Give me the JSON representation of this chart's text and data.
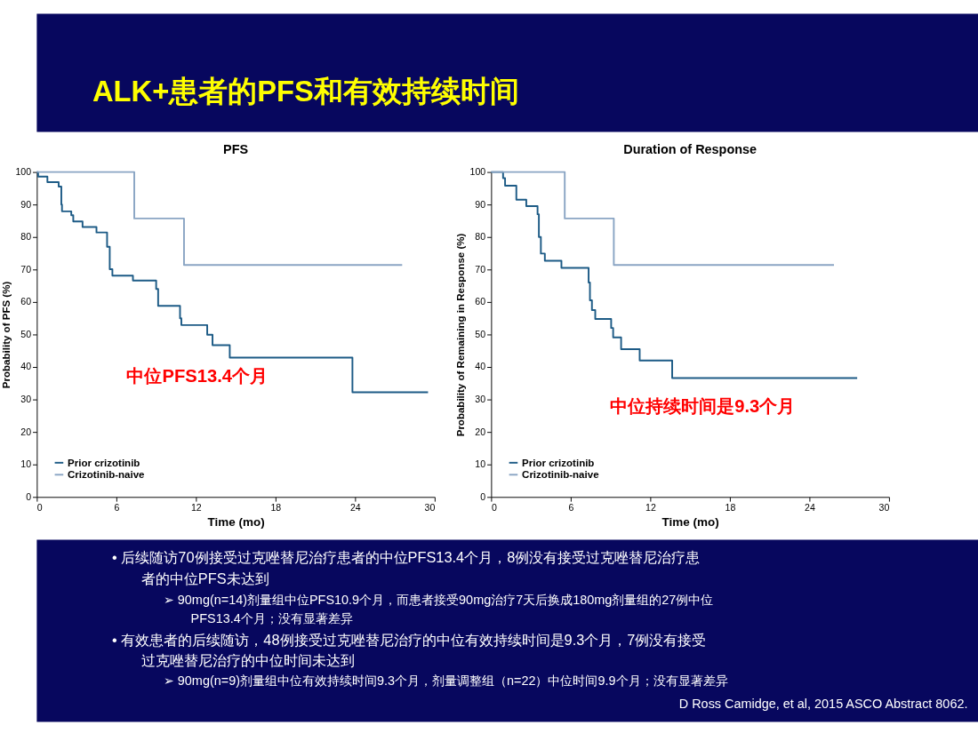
{
  "chart_data": [
    {
      "type": "other",
      "title": "ALK+患者的PFS和有效持续时间"
    },
    {
      "type": "step",
      "title": "PFS",
      "xlabel": "Time (mo)",
      "ylabel": "Probability of PFS (%)",
      "xlim": [
        0,
        30
      ],
      "xticks": [
        0,
        6,
        12,
        18,
        24,
        30
      ],
      "ylim": [
        0,
        100
      ],
      "yticks": [
        0,
        10,
        20,
        30,
        40,
        50,
        60,
        70,
        80,
        90,
        100
      ],
      "legend": "bottom left",
      "annotations": [
        "中位PFS13.4个月"
      ],
      "series": [
        {
          "name": "Prior crizotinib",
          "color": "#1d5b86",
          "x": [
            0,
            0.1,
            0.8,
            1.65,
            1.85,
            1.9,
            2.6,
            2.75,
            3.45,
            4.5,
            5.3,
            5.5,
            5.7,
            7.25,
            9.0,
            9.15,
            10.8,
            10.9,
            12.85,
            13.25,
            14.55,
            23.8,
            29.5
          ],
          "values": [
            100,
            98.6,
            96.9,
            95.5,
            90,
            87.9,
            86.7,
            84.8,
            83.1,
            81.4,
            77,
            70.1,
            68.1,
            66.6,
            64,
            58.8,
            55,
            52.9,
            49.9,
            46.7,
            42.9,
            32.2,
            32.2
          ]
        },
        {
          "name": "Crizotinib-naive",
          "color": "#8aa5c4",
          "x": [
            0,
            7.35,
            11.1,
            27.55
          ],
          "values": [
            100,
            85.7,
            71.4,
            71.4
          ]
        }
      ]
    },
    {
      "type": "step",
      "title": "Duration of Response",
      "xlabel": "Time (mo)",
      "ylabel": "Probability of Remaining in Response (%)",
      "xlim": [
        0,
        30
      ],
      "xticks": [
        0,
        6,
        12,
        18,
        24,
        30
      ],
      "ylim": [
        0,
        100
      ],
      "yticks": [
        0,
        10,
        20,
        30,
        40,
        50,
        60,
        70,
        80,
        90,
        100
      ],
      "legend": "bottom left",
      "annotations": [
        "中位持续时间是9.3个月"
      ],
      "series": [
        {
          "name": "Prior crizotinib",
          "color": "#1d5b86",
          "x": [
            0,
            0.9,
            1.05,
            1.9,
            2.65,
            3.5,
            3.6,
            3.75,
            4.05,
            5.3,
            7.35,
            7.45,
            7.6,
            7.85,
            9.05,
            9.2,
            9.8,
            11.2,
            13.65,
            27.6
          ],
          "values": [
            100,
            98.1,
            95.8,
            91.5,
            89.5,
            87,
            80,
            74.9,
            72.7,
            70.5,
            66,
            60.5,
            57.5,
            54.8,
            52,
            49.1,
            45.5,
            42,
            36.6,
            36.6
          ]
        },
        {
          "name": "Crizotinib-naive",
          "color": "#8aa5c4",
          "x": [
            0,
            5.55,
            9.25,
            25.85
          ],
          "values": [
            100,
            85.7,
            71.4,
            71.4
          ]
        }
      ]
    },
    {
      "type": "other",
      "annotations": [
        "•    后续随访70例接受过克唑替尼治疗患者的中位PFS13.4个月，8例没有接受过克唑替尼治疗患",
        "者的中位PFS未达到",
        "➢   90mg(n=14)剂量组中位PFS10.9个月，而患者接受90mg治疗7天后换成180mg剂量组的27例中位",
        "PFS13.4个月；没有显著差异",
        "•    有效患者的后续随访，48例接受过克唑替尼治疗的中位有效持续时间是9.3个月，7例没有接受",
        "过克唑替尼治疗的中位时间未达到",
        "➢   90mg(n=9)剂量组中位有效持续时间9.3个月，剂量调整组（n=22）中位时间9.9个月；没有显著差异",
        "D Ross Camidge, et al, 2015 ASCO Abstract  8062."
      ]
    }
  ]
}
